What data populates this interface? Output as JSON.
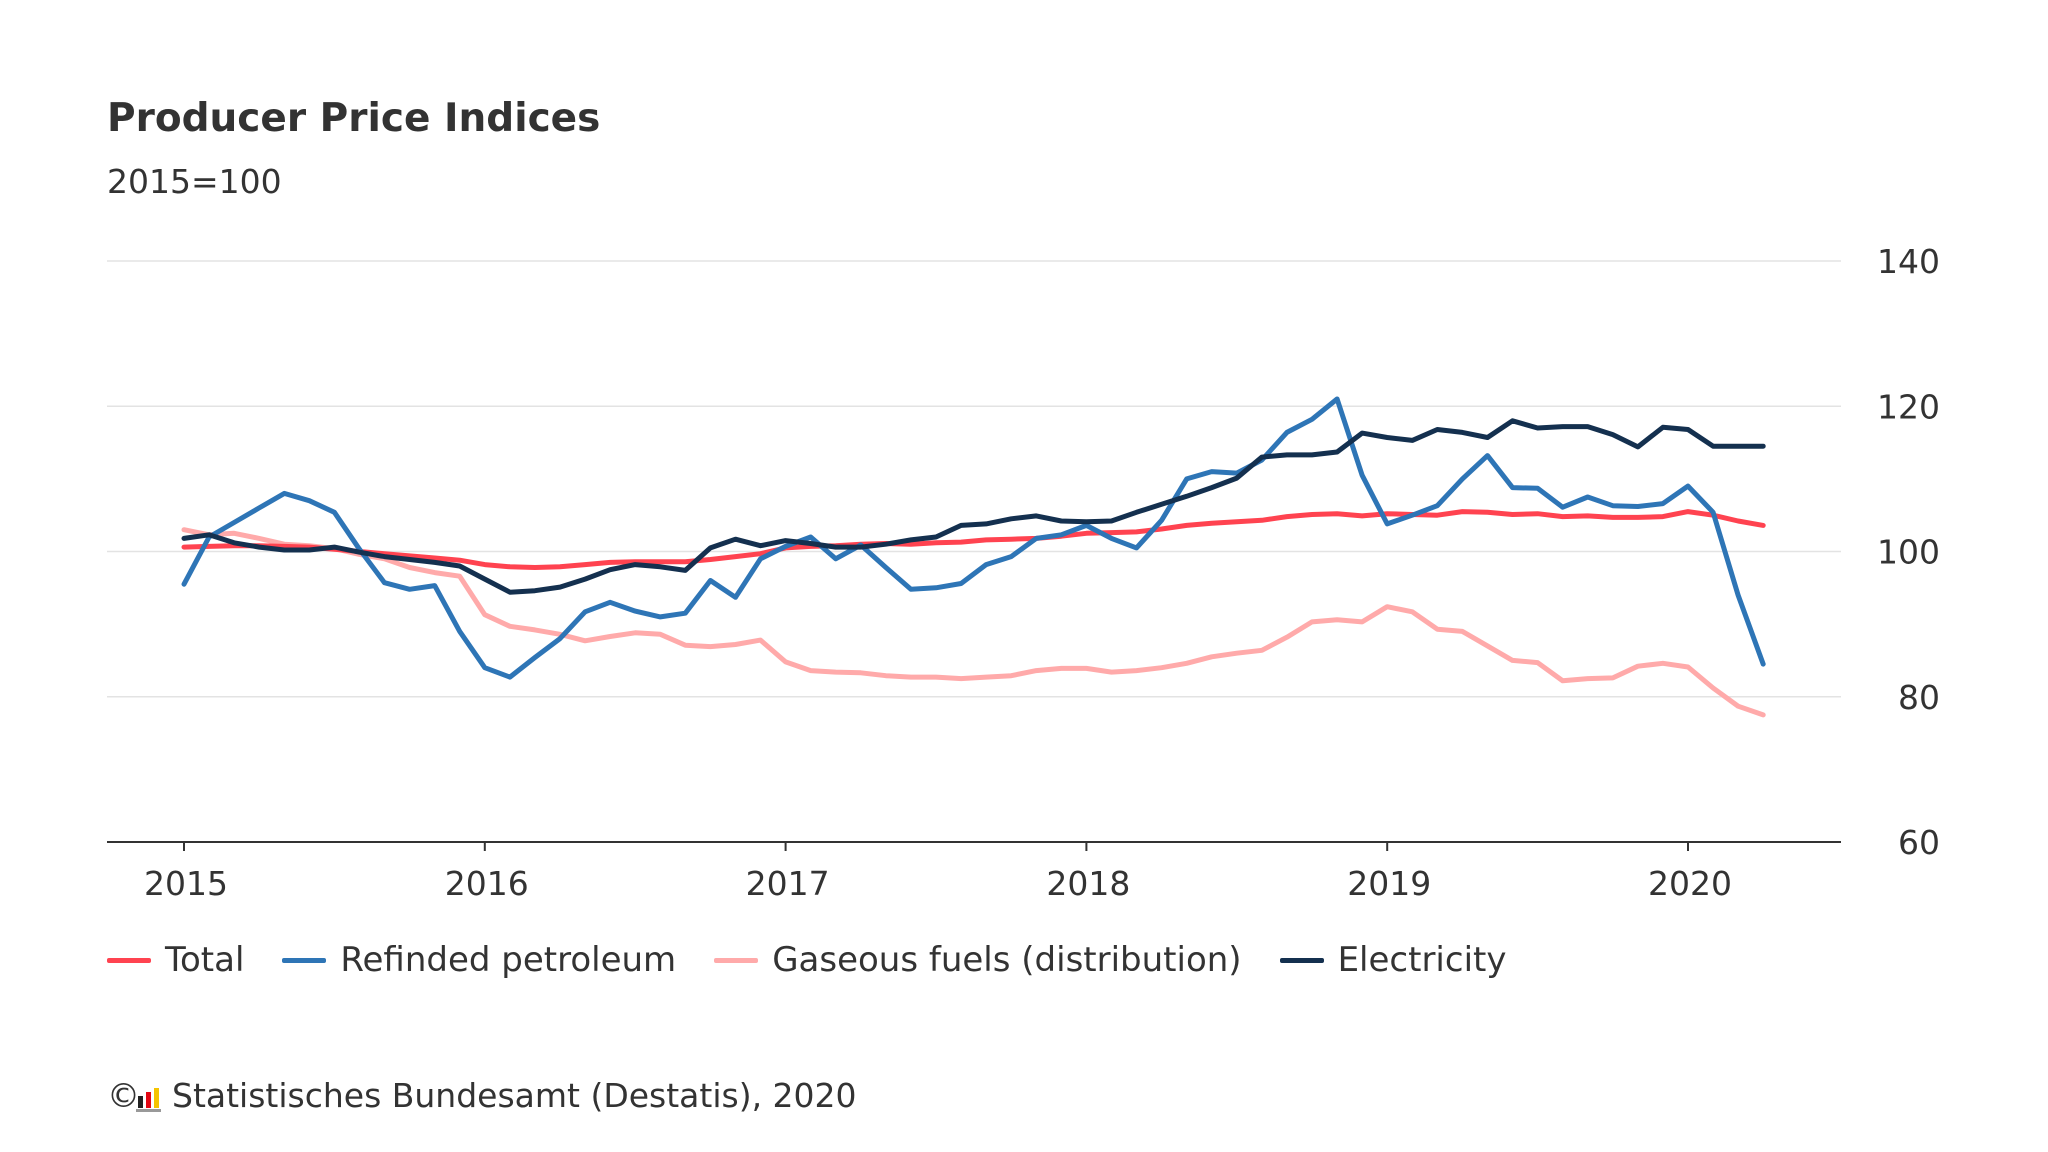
{
  "title": "Producer Price Indices",
  "subtitle": "2015=100",
  "footer": {
    "copyright_symbol": "©",
    "text": "Statistisches Bundesamt (Destatis), 2020"
  },
  "chart_data": {
    "type": "line",
    "title": "Producer Price Indices",
    "subtitle": "2015=100",
    "x_start": "2015-01",
    "x_frequency": "monthly",
    "x_end": "2020-04",
    "xticks": [
      "2015",
      "2016",
      "2017",
      "2018",
      "2019",
      "2020"
    ],
    "yticks": [
      60,
      80,
      100,
      120,
      140
    ],
    "ylim": [
      60,
      140
    ],
    "y_axis_side": "right",
    "grid": "horizontal",
    "legend_position": "bottom-left",
    "series": [
      {
        "name": "Total",
        "color": "#ff4350",
        "values": [
          100.6,
          100.7,
          100.8,
          100.8,
          100.7,
          100.6,
          100.3,
          100.0,
          99.7,
          99.4,
          99.1,
          98.8,
          98.2,
          97.9,
          97.8,
          97.9,
          98.2,
          98.5,
          98.6,
          98.6,
          98.6,
          98.9,
          99.3,
          99.7,
          100.5,
          100.7,
          100.8,
          101.0,
          101.1,
          101.0,
          101.2,
          101.3,
          101.6,
          101.7,
          101.8,
          102.1,
          102.5,
          102.6,
          102.7,
          103.1,
          103.6,
          103.9,
          104.1,
          104.3,
          104.8,
          105.1,
          105.2,
          104.9,
          105.2,
          105.1,
          105.0,
          105.5,
          105.4,
          105.1,
          105.2,
          104.8,
          104.9,
          104.7,
          104.7,
          104.8,
          105.5,
          105.0,
          104.2,
          103.6
        ]
      },
      {
        "name": "Refinded petroleum",
        "color": "#2e75b6",
        "values": [
          95.5,
          102.0,
          104.0,
          106.0,
          108.0,
          107.0,
          105.4,
          100.3,
          95.7,
          94.8,
          95.3,
          89.0,
          84.0,
          82.7,
          85.4,
          88.0,
          91.7,
          93.0,
          91.8,
          91.0,
          91.5,
          96.0,
          93.7,
          99.0,
          100.7,
          102.0,
          99.0,
          100.9,
          97.8,
          94.8,
          95.0,
          95.6,
          98.2,
          99.3,
          101.8,
          102.3,
          103.6,
          101.8,
          100.5,
          104.3,
          110.0,
          111.0,
          110.8,
          112.6,
          116.4,
          118.2,
          121.0,
          110.5,
          103.8,
          105.0,
          106.3,
          110.0,
          113.2,
          108.8,
          108.7,
          106.1,
          107.5,
          106.3,
          106.2,
          106.6,
          109.0,
          105.4,
          94.0,
          84.5
        ]
      },
      {
        "name": "Gaseous fuels (distribution)",
        "color": "#ffaaaa",
        "values": [
          103.0,
          102.3,
          102.5,
          101.8,
          101.0,
          100.8,
          100.4,
          99.6,
          99.0,
          97.8,
          97.1,
          96.6,
          91.3,
          89.7,
          89.2,
          88.6,
          87.7,
          88.3,
          88.8,
          88.6,
          87.1,
          86.9,
          87.2,
          87.8,
          84.8,
          83.6,
          83.4,
          83.3,
          82.9,
          82.7,
          82.7,
          82.5,
          82.7,
          82.9,
          83.6,
          83.9,
          83.9,
          83.4,
          83.6,
          84.0,
          84.6,
          85.5,
          86.0,
          86.4,
          88.2,
          90.3,
          90.6,
          90.3,
          92.4,
          91.7,
          89.3,
          89.0,
          87.0,
          85.0,
          84.7,
          82.2,
          82.5,
          82.6,
          84.2,
          84.6,
          84.1,
          81.2,
          78.7,
          77.5
        ]
      },
      {
        "name": "Electricity",
        "color": "#14304f",
        "values": [
          101.8,
          102.3,
          101.2,
          100.6,
          100.2,
          100.2,
          100.6,
          99.9,
          99.3,
          98.9,
          98.5,
          98.0,
          96.2,
          94.4,
          94.6,
          95.1,
          96.2,
          97.5,
          98.2,
          97.9,
          97.4,
          100.5,
          101.7,
          100.8,
          101.5,
          101.1,
          100.6,
          100.6,
          101.0,
          101.6,
          102.0,
          103.6,
          103.8,
          104.5,
          104.9,
          104.2,
          104.1,
          104.2,
          105.4,
          106.5,
          107.6,
          108.8,
          110.1,
          113.0,
          113.3,
          113.3,
          113.7,
          116.3,
          115.7,
          115.3,
          116.8,
          116.4,
          115.7,
          118.0,
          117.0,
          117.2,
          117.2,
          116.1,
          114.4,
          117.1,
          116.8,
          114.5,
          114.5,
          114.5
        ]
      }
    ]
  }
}
